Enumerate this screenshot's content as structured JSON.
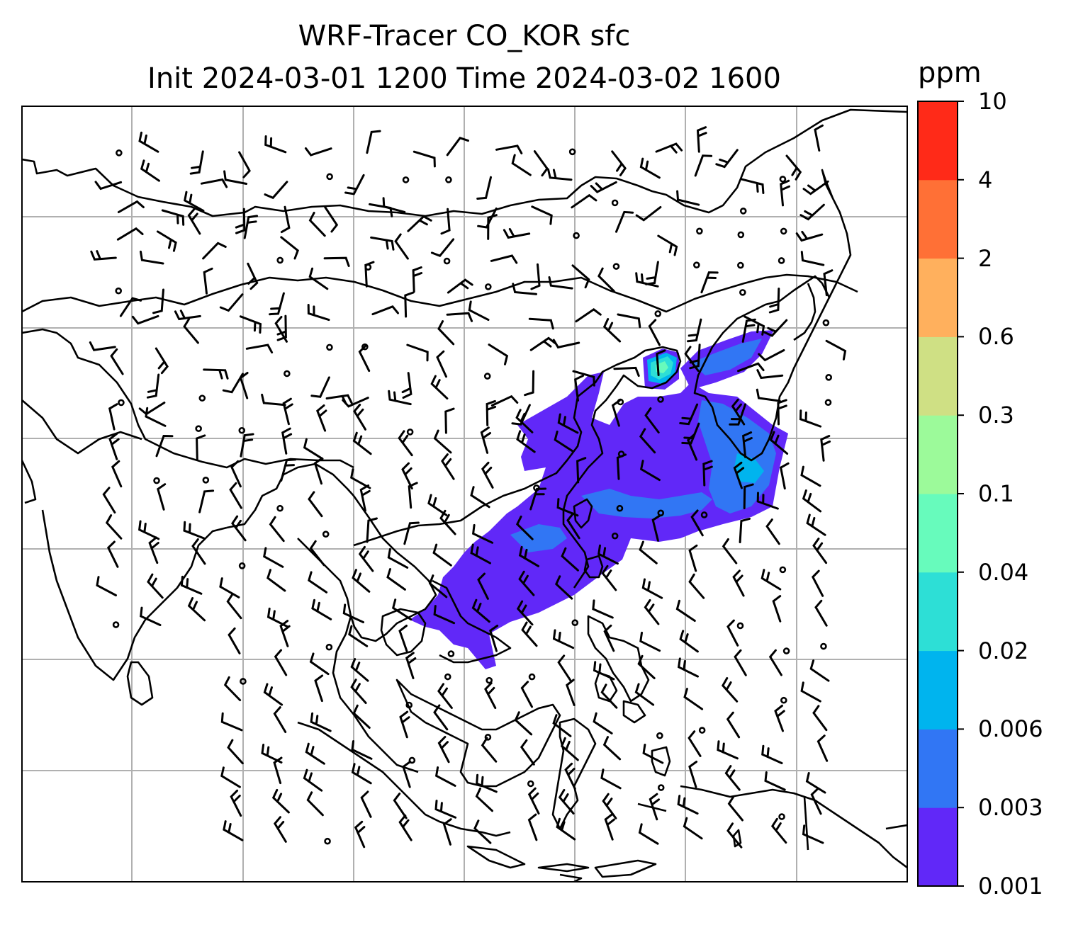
{
  "title": {
    "line1": "WRF-Tracer CO_KOR sfc",
    "line2": "Init 2024-03-01 1200 Time 2024-03-02 1600"
  },
  "colorbar": {
    "unit": "ppm",
    "levels": [
      "0.001",
      "0.003",
      "0.006",
      "0.02",
      "0.04",
      "0.1",
      "0.3",
      "0.6",
      "2",
      "4",
      "10"
    ],
    "colors": [
      "#6128f8",
      "#3176f4",
      "#00b4ee",
      "#2ddfd6",
      "#67fbbc",
      "#9cfa9a",
      "#cfe084",
      "#ffb05d",
      "#ff7036",
      "#ff2a18"
    ]
  },
  "map": {
    "grid": true,
    "coastline_color": "#000000",
    "barb_color": "#000000"
  }
}
